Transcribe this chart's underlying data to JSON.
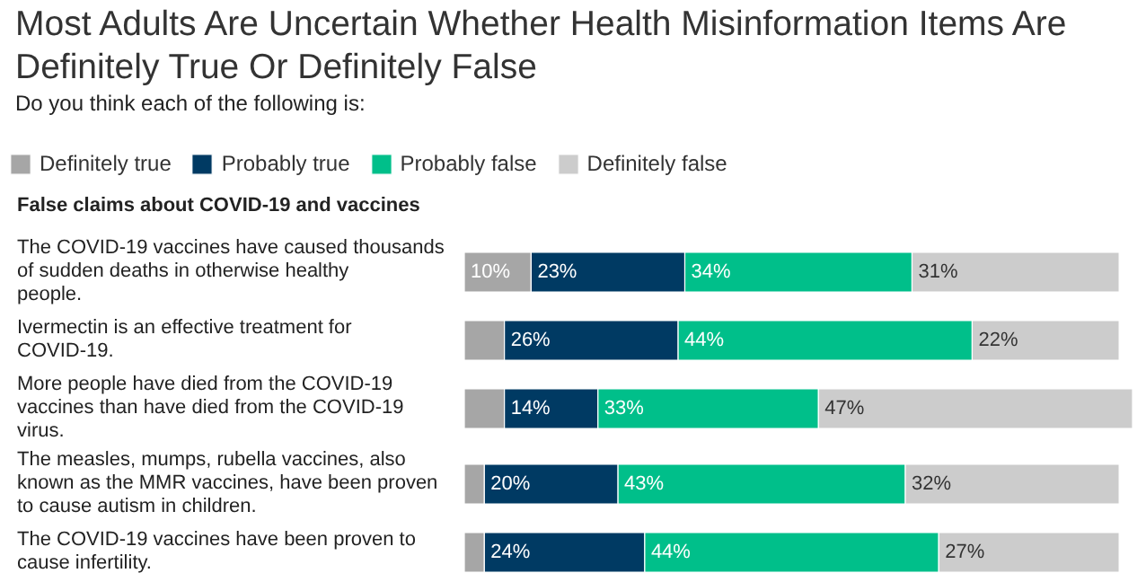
{
  "chart_data": {
    "type": "bar",
    "orientation": "horizontal",
    "stacked": true,
    "legend": "top",
    "title": "Most Adults Are Uncertain Whether Health Misinformation Items Are Definitely True Or Definitely False",
    "subtitle": "Do you think each of the following is:",
    "annotations": [
      "False claims about COVID-19 and vaccines"
    ],
    "categories": [
      "The COVID-19 vaccines have caused thousands of sudden deaths in otherwise healthy people.",
      "Ivermectin is an effective treatment for COVID-19.",
      "More people have died from the COVID-19 vaccines than have died from the COVID-19 virus.",
      "The measles, mumps, rubella vaccines, also known as the MMR vaccines, have been proven to cause autism in children.",
      "The COVID-19 vaccines have been proven to cause infertility."
    ],
    "series": [
      {
        "name": "Definitely true",
        "color": "#a6a6a6",
        "values": [
          10,
          6,
          6,
          3,
          3
        ],
        "value_labels": [
          "10%",
          null,
          null,
          null,
          null
        ]
      },
      {
        "name": "Probably true",
        "color": "#003a63",
        "values": [
          23,
          26,
          14,
          20,
          24
        ],
        "value_labels": [
          "23%",
          "26%",
          "14%",
          "20%",
          "24%"
        ]
      },
      {
        "name": "Probably false",
        "color": "#00bf8a",
        "values": [
          34,
          44,
          33,
          43,
          44
        ],
        "value_labels": [
          "34%",
          "44%",
          "33%",
          "43%",
          "44%"
        ]
      },
      {
        "name": "Definitely false",
        "color": "#cccccc",
        "values": [
          31,
          22,
          47,
          32,
          27
        ],
        "value_labels": [
          "31%",
          "22%",
          "47%",
          "32%",
          "27%"
        ]
      }
    ]
  }
}
